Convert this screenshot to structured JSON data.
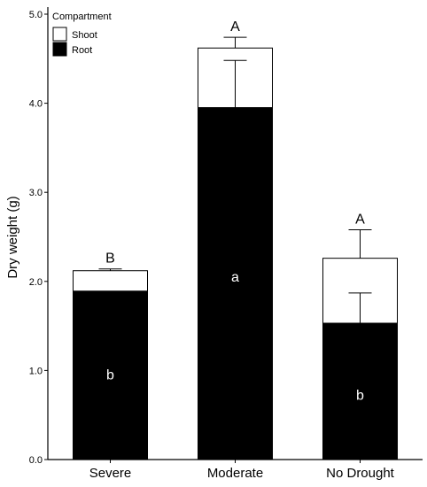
{
  "chart_data": {
    "type": "bar",
    "stacked": true,
    "categories": [
      "Severe",
      "Moderate",
      "No Drought"
    ],
    "series": [
      {
        "name": "Root",
        "color": "#000000",
        "values": [
          1.89,
          3.95,
          1.53
        ],
        "error_upper": [
          1.89,
          4.48,
          1.87
        ],
        "letters": [
          "b",
          "a",
          "b"
        ],
        "letter_y": [
          0.95,
          2.05,
          0.72
        ]
      },
      {
        "name": "Shoot",
        "color": "#ffffff",
        "values": [
          0.23,
          0.67,
          0.73
        ],
        "error_upper": [
          2.14,
          4.74,
          2.58
        ],
        "letters": [
          "B",
          "A",
          "A"
        ]
      }
    ],
    "xlabel": "",
    "ylabel": "Dry weight (g)",
    "ylim": [
      0,
      5.0
    ],
    "yticks": [
      "0.0",
      "1.0",
      "2.0",
      "3.0",
      "4.0",
      "5.0"
    ],
    "legend": {
      "title": "Compartment",
      "placement": "top-left",
      "entries": [
        "Shoot",
        "Root"
      ]
    },
    "grid": false
  }
}
